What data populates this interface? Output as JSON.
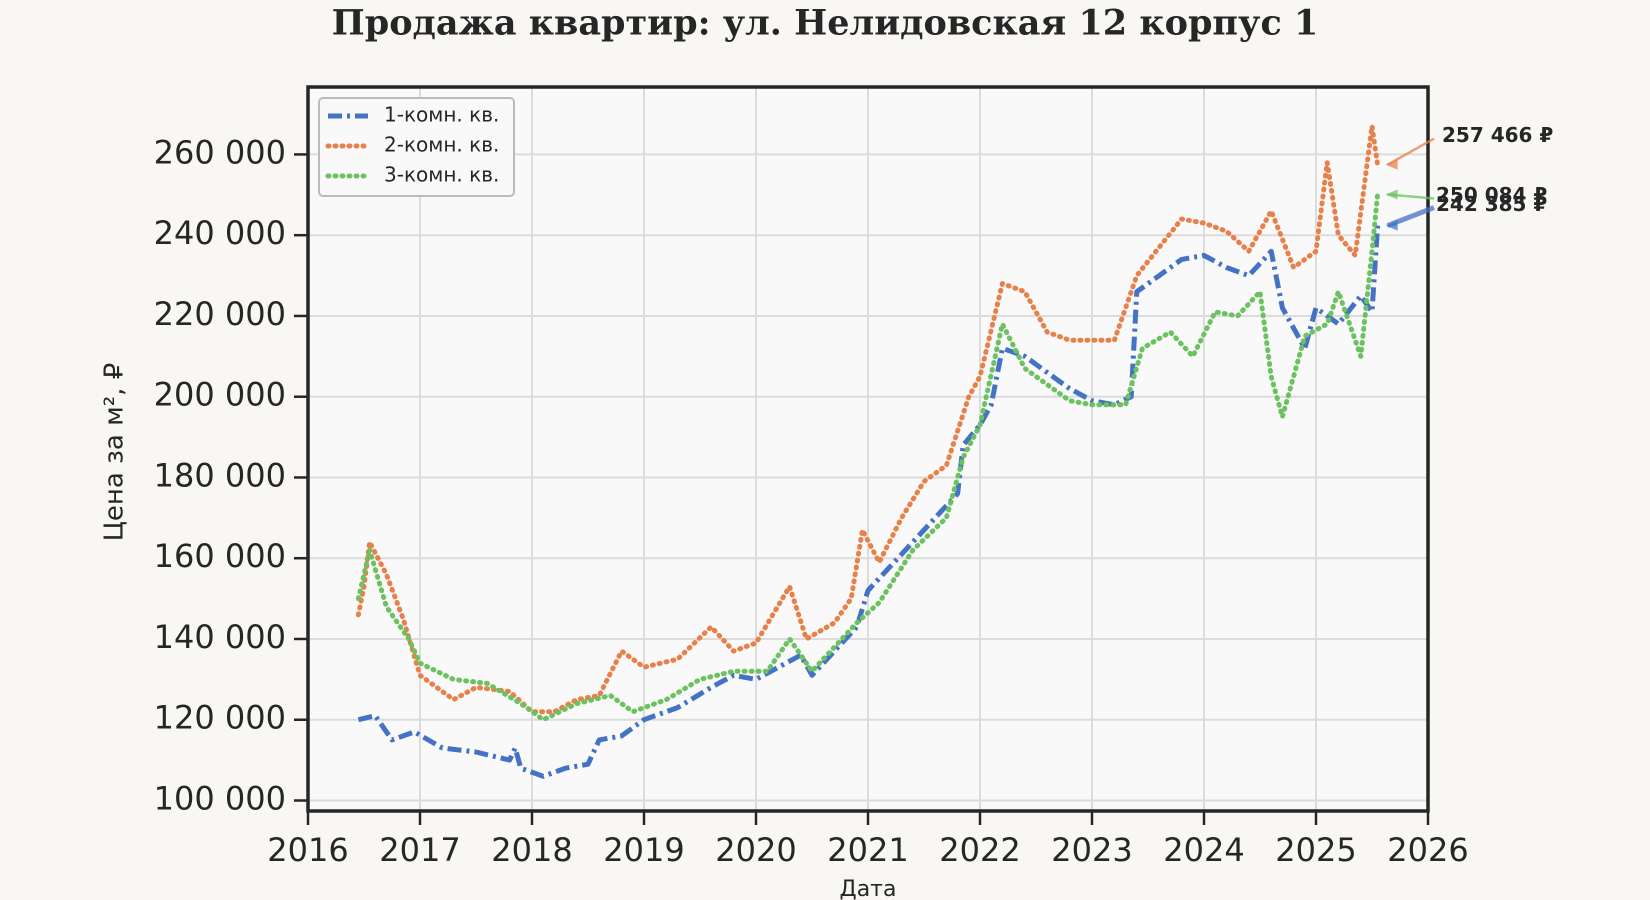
{
  "chart_data": {
    "type": "line",
    "title": "Продажа квартир: ул. Нелидовская 12 корпус 1",
    "x_label": "Дата",
    "y_label": "Цена за м², ₽",
    "xlim": [
      2016,
      2026
    ],
    "xticks": [
      2016,
      2017,
      2018,
      2019,
      2020,
      2021,
      2022,
      2023,
      2024,
      2025,
      2026
    ],
    "ylim": [
      97400,
      276700
    ],
    "yticks": [
      {
        "value": 100000,
        "label": "100 000"
      },
      {
        "value": 120000,
        "label": "120 000"
      },
      {
        "value": 140000,
        "label": "140 000"
      },
      {
        "value": 160000,
        "label": "160 000"
      },
      {
        "value": 180000,
        "label": "180 000"
      },
      {
        "value": 200000,
        "label": "200 000"
      },
      {
        "value": 220000,
        "label": "220 000"
      },
      {
        "value": 240000,
        "label": "240 000"
      },
      {
        "value": 260000,
        "label": "260 000"
      }
    ],
    "grid": true,
    "legend": "upper left",
    "series": [
      {
        "name": "1-комн. кв.",
        "color": "#4472c4",
        "style": "dashdot",
        "x": [
          2016.45,
          2016.6,
          2016.75,
          2016.95,
          2017.2,
          2017.5,
          2017.8,
          2017.85,
          2017.9,
          2018.1,
          2018.3,
          2018.5,
          2018.6,
          2018.8,
          2019.0,
          2019.3,
          2019.6,
          2019.8,
          2020.0,
          2020.2,
          2020.4,
          2020.5,
          2020.7,
          2020.9,
          2021.0,
          2021.2,
          2021.4,
          2021.6,
          2021.8,
          2021.85,
          2022.0,
          2022.1,
          2022.2,
          2022.4,
          2022.6,
          2022.8,
          2023.0,
          2023.2,
          2023.35,
          2023.4,
          2023.6,
          2023.8,
          2024.0,
          2024.2,
          2024.4,
          2024.6,
          2024.7,
          2024.9,
          2025.0,
          2025.2,
          2025.4,
          2025.5,
          2025.55
        ],
        "values": [
          120000,
          121000,
          115000,
          117000,
          113000,
          112000,
          110000,
          113000,
          108000,
          106000,
          108000,
          109000,
          115000,
          116000,
          120000,
          123000,
          128000,
          131000,
          130000,
          133000,
          136000,
          131000,
          137000,
          143000,
          152000,
          158000,
          164000,
          170000,
          176000,
          188000,
          193000,
          198000,
          212000,
          210000,
          206000,
          202000,
          199000,
          198000,
          200000,
          226000,
          230000,
          234000,
          235000,
          232000,
          230000,
          236000,
          222000,
          212000,
          222000,
          218000,
          225000,
          221000,
          242385
        ]
      },
      {
        "name": "2-комн. кв.",
        "color": "#e8804a",
        "style": "dotted",
        "x": [
          2016.45,
          2016.5,
          2016.55,
          2016.7,
          2016.85,
          2017.0,
          2017.3,
          2017.5,
          2017.8,
          2018.0,
          2018.2,
          2018.4,
          2018.6,
          2018.8,
          2019.0,
          2019.3,
          2019.6,
          2019.8,
          2020.0,
          2020.3,
          2020.45,
          2020.7,
          2020.85,
          2020.95,
          2021.1,
          2021.3,
          2021.5,
          2021.7,
          2021.9,
          2022.0,
          2022.2,
          2022.4,
          2022.6,
          2022.8,
          2023.0,
          2023.2,
          2023.4,
          2023.6,
          2023.8,
          2024.0,
          2024.2,
          2024.4,
          2024.6,
          2024.8,
          2025.0,
          2025.1,
          2025.2,
          2025.35,
          2025.5,
          2025.55
        ],
        "values": [
          146000,
          153000,
          164000,
          156000,
          145000,
          131000,
          125000,
          128000,
          127000,
          122000,
          122000,
          125000,
          126000,
          137000,
          133000,
          135000,
          143000,
          137000,
          139000,
          153000,
          140000,
          144000,
          150000,
          167000,
          159000,
          170000,
          179000,
          183000,
          200000,
          205000,
          228000,
          226000,
          216000,
          214000,
          214000,
          214000,
          230000,
          237000,
          244000,
          243000,
          241000,
          236000,
          246000,
          232000,
          236000,
          258000,
          240000,
          235000,
          267000,
          257466
        ]
      },
      {
        "name": "3-комн. кв.",
        "color": "#6cc160",
        "style": "dotted",
        "x": [
          2016.45,
          2016.55,
          2016.7,
          2016.9,
          2017.0,
          2017.3,
          2017.6,
          2017.9,
          2018.1,
          2018.4,
          2018.7,
          2018.9,
          2019.2,
          2019.5,
          2019.8,
          2020.1,
          2020.3,
          2020.5,
          2020.7,
          2020.9,
          2021.1,
          2021.4,
          2021.7,
          2021.85,
          2022.0,
          2022.2,
          2022.4,
          2022.6,
          2022.8,
          2023.0,
          2023.3,
          2023.45,
          2023.7,
          2023.9,
          2024.1,
          2024.3,
          2024.5,
          2024.6,
          2024.7,
          2024.9,
          2025.1,
          2025.2,
          2025.4,
          2025.5,
          2025.55
        ],
        "values": [
          150000,
          162000,
          148000,
          140000,
          134000,
          130000,
          129000,
          124000,
          120000,
          124000,
          126000,
          122000,
          125000,
          130000,
          132000,
          132000,
          140000,
          132000,
          138000,
          144000,
          149000,
          162000,
          170000,
          185000,
          193000,
          218000,
          207000,
          203000,
          199000,
          198000,
          198000,
          212000,
          216000,
          210000,
          221000,
          220000,
          226000,
          205000,
          195000,
          215000,
          218000,
          226000,
          210000,
          236000,
          250084
        ]
      }
    ],
    "annotations": [
      {
        "value": 242385,
        "label": "242 385 ₽",
        "color": "#4472c4"
      },
      {
        "value": 257466,
        "label": "257 466 ₽",
        "color": "#e8804a"
      },
      {
        "value": 250084,
        "label": "250 084 ₽",
        "color": "#6cc160"
      }
    ]
  }
}
